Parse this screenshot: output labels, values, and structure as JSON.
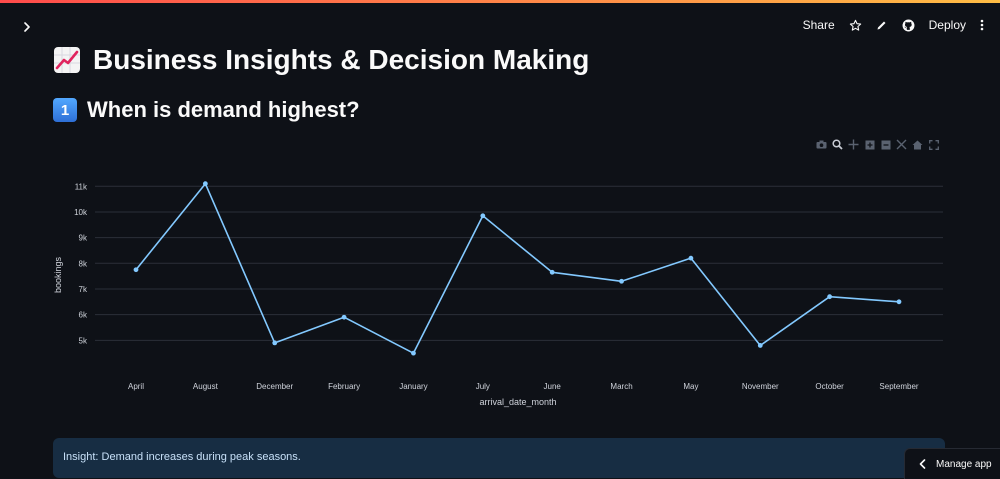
{
  "header": {
    "share_label": "Share",
    "deploy_label": "Deploy"
  },
  "page": {
    "title": "Business Insights & Decision Making",
    "title_icon": "chart-increasing-emoji",
    "section_number": "1",
    "section_title": "When is demand highest?"
  },
  "modebar": {
    "icons": [
      "camera-icon",
      "zoom-icon",
      "pan-icon",
      "zoom-in-icon",
      "zoom-out-icon",
      "autoscale-icon",
      "home-icon",
      "fullscreen-icon"
    ]
  },
  "chart_data": {
    "type": "line",
    "categories": [
      "April",
      "August",
      "December",
      "February",
      "January",
      "July",
      "June",
      "March",
      "May",
      "November",
      "October",
      "September"
    ],
    "values": [
      7750,
      11100,
      4900,
      5900,
      4500,
      9850,
      7650,
      7300,
      8200,
      4800,
      6700,
      6500
    ],
    "xlabel": "arrival_date_month",
    "ylabel": "bookings",
    "ylim": [
      4000,
      11400
    ],
    "yticks": [
      5000,
      6000,
      7000,
      8000,
      9000,
      10000,
      11000
    ],
    "ytick_labels": [
      "5k",
      "6k",
      "7k",
      "8k",
      "9k",
      "10k",
      "11k"
    ],
    "grid": true,
    "line_color": "#83c9ff"
  },
  "insight": {
    "text": "Insight: Demand increases during peak seasons."
  },
  "manage_app": {
    "label": "Manage app"
  }
}
